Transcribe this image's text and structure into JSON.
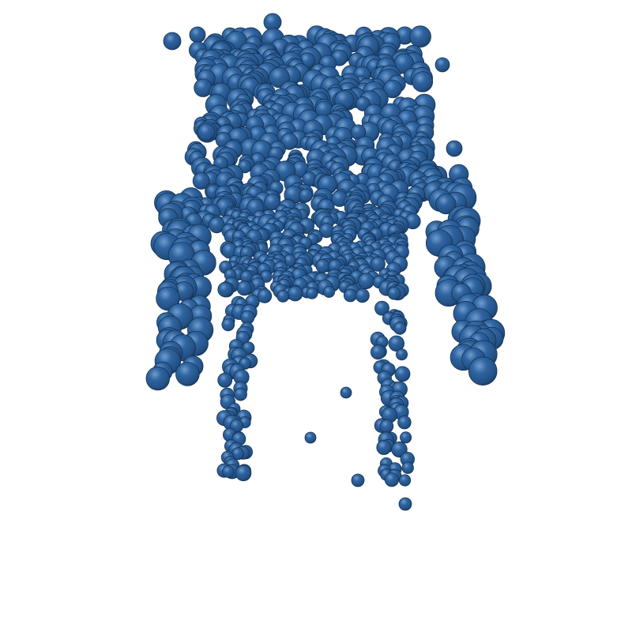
{
  "scene": {
    "subject": "sphere-cloud",
    "background": "#ffffff",
    "sphere_color": "#2c5d93",
    "sphere_highlight": "#6f9ccd",
    "sphere_shadow": "#153457"
  }
}
